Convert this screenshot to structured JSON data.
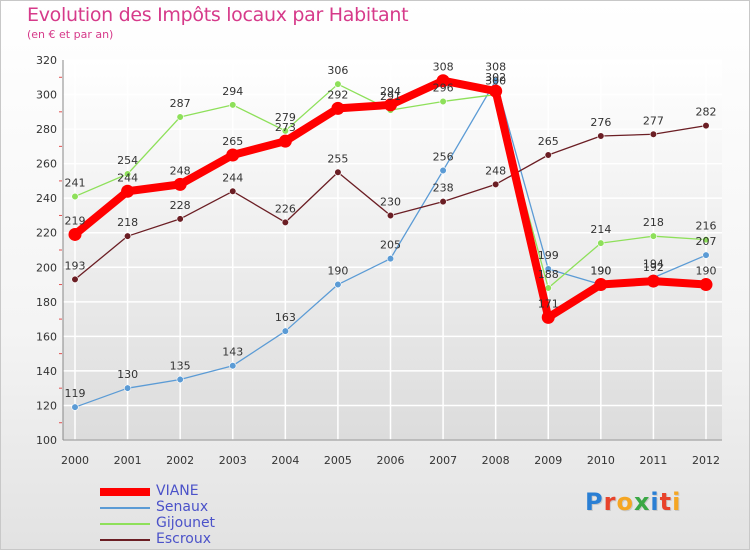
{
  "chart_data": {
    "type": "line",
    "title": "Evolution des Impôts locaux par Habitant",
    "subtitle": "(en € et par an)",
    "xlabel": "",
    "ylabel": "",
    "x": [
      "2000",
      "2001",
      "2002",
      "2003",
      "2004",
      "2005",
      "2006",
      "2007",
      "2008",
      "2009",
      "2010",
      "2011",
      "2012"
    ],
    "ylim": [
      100,
      320
    ],
    "yticks": [
      100,
      120,
      140,
      160,
      180,
      200,
      220,
      240,
      260,
      280,
      300,
      320
    ],
    "grid": true,
    "legend_position": "bottom-left",
    "series": [
      {
        "name": "VIANE",
        "color": "#ff0000",
        "values": [
          219,
          244,
          248,
          265,
          273,
          292,
          294,
          308,
          302,
          171,
          190,
          192,
          190
        ]
      },
      {
        "name": "Senaux",
        "color": "#5b9bd5",
        "values": [
          119,
          130,
          135,
          143,
          163,
          190,
          205,
          256,
          308,
          199,
          190,
          194,
          207
        ]
      },
      {
        "name": "Gijounet",
        "color": "#8ee05a",
        "values": [
          241,
          254,
          287,
          294,
          279,
          306,
          291,
          296,
          300,
          188,
          214,
          218,
          216
        ]
      },
      {
        "name": "Escroux",
        "color": "#6b1e24",
        "values": [
          193,
          218,
          228,
          244,
          226,
          255,
          230,
          238,
          248,
          265,
          276,
          277,
          282
        ]
      }
    ]
  },
  "legend": {
    "items": [
      {
        "label": "VIANE",
        "color": "#ff0000"
      },
      {
        "label": "Senaux",
        "color": "#5b9bd5"
      },
      {
        "label": "Gijounet",
        "color": "#8ee05a"
      },
      {
        "label": "Escroux",
        "color": "#6b1e24"
      }
    ]
  },
  "logo": {
    "letters": [
      "P",
      "r",
      "o",
      "x",
      "i",
      "t",
      "i"
    ],
    "colors": [
      "#2a7fd4",
      "#e8432b",
      "#f5a623",
      "#3aa845",
      "#2a7fd4",
      "#e8432b",
      "#f5a623"
    ]
  }
}
